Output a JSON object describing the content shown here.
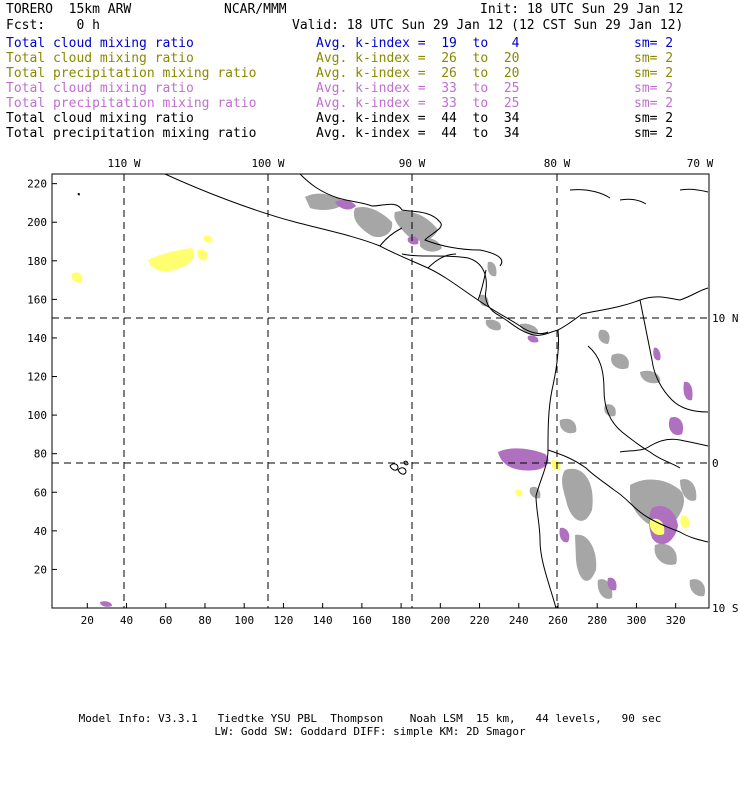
{
  "header": {
    "model": "TORERO  15km ARW",
    "org": "NCAR/MMM",
    "init": "Init: 18 UTC Sun 29 Jan 12",
    "fcst": "Fcst:    0 h",
    "valid": "Valid: 18 UTC Sun 29 Jan 12 (12 CST Sun 29 Jan 12)"
  },
  "fields": [
    {
      "name": "Total cloud mixing ratio",
      "kindex": "Avg. k-index =  19  to   4",
      "sm": "sm= 2",
      "color": "#0000cc"
    },
    {
      "name": "Total cloud mixing ratio",
      "kindex": "Avg. k-index =  26  to  20",
      "sm": "sm= 2",
      "color": "#8a8a00"
    },
    {
      "name": "Total precipitation mixing ratio",
      "kindex": "Avg. k-index =  26  to  20",
      "sm": "sm= 2",
      "color": "#8a8a00"
    },
    {
      "name": "Total cloud mixing ratio",
      "kindex": "Avg. k-index =  33  to  25",
      "sm": "sm= 2",
      "color": "#c070d0"
    },
    {
      "name": "Total precipitation mixing ratio",
      "kindex": "Avg. k-index =  33  to  25",
      "sm": "sm= 2",
      "color": "#c070d0"
    },
    {
      "name": "Total cloud mixing ratio",
      "kindex": "Avg. k-index =  44  to  34",
      "sm": "sm= 2",
      "color": "#000000"
    },
    {
      "name": "Total precipitation mixing ratio",
      "kindex": "Avg. k-index =  44  to  34",
      "sm": "sm= 2",
      "color": "#000000"
    }
  ],
  "map": {
    "top_labels": [
      "110 W",
      "100 W",
      "90 W",
      "80 W",
      "70 W"
    ],
    "right_labels": [
      "10 N",
      "0",
      "10 S"
    ],
    "left_ticks": [
      "220",
      "200",
      "180",
      "160",
      "140",
      "120",
      "100",
      "80",
      "60",
      "40",
      "20"
    ],
    "bottom_ticks": [
      "20",
      "40",
      "60",
      "80",
      "100",
      "120",
      "140",
      "160",
      "180",
      "200",
      "220",
      "240",
      "260",
      "280",
      "300",
      "320"
    ],
    "colors": {
      "gray": "#a6a6a6",
      "purple": "#b070c0",
      "yellow": "#ffff70",
      "coast": "#000000"
    }
  },
  "footer": {
    "line1": "Model Info: V3.3.1   Tiedtke YSU PBL  Thompson    Noah LSM  15 km,   44 levels,   90 sec",
    "line2": "LW: Godd SW: Goddard DIFF: simple KM: 2D Smagor"
  }
}
